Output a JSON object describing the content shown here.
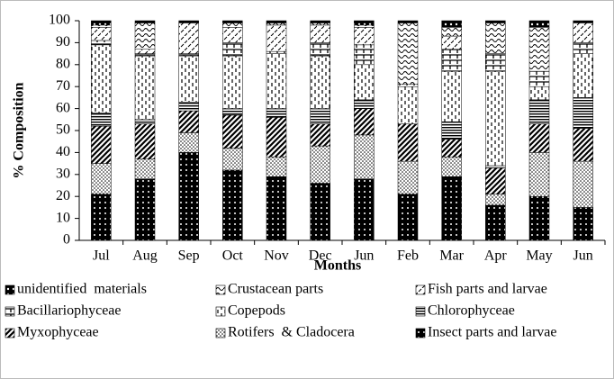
{
  "chart_data": {
    "type": "stacked_bar",
    "x_label": "Months",
    "y_label": "% Composition",
    "categories": [
      "Jul",
      "Aug",
      "Sep",
      "Oct",
      "Nov",
      "Dec",
      "Jun",
      "Feb",
      "Mar",
      "Apr",
      "May",
      "Jun"
    ],
    "ylim": [
      0,
      100
    ],
    "yticks": [
      0,
      10,
      20,
      30,
      40,
      50,
      60,
      70,
      80,
      90,
      100
    ],
    "series": [
      {
        "name": "unidentified  materials",
        "color": "#000000",
        "pattern": "blackdot",
        "values": [
          2,
          1,
          1,
          1,
          1,
          1,
          2,
          1,
          3,
          1,
          3,
          1
        ]
      },
      {
        "name": "Crustacean parts",
        "color": "#000000",
        "pattern": "wave",
        "values": [
          1,
          12,
          0,
          2,
          1,
          1,
          1,
          28,
          4,
          14,
          20,
          0
        ]
      },
      {
        "name": "Fish parts and larvae",
        "color": "#000000",
        "pattern": "slashdash",
        "values": [
          6,
          2,
          14,
          7,
          12,
          8,
          8,
          0,
          6,
          0,
          0,
          9
        ]
      },
      {
        "name": "Bacillariophyceae",
        "color": "#000000",
        "pattern": "tee",
        "values": [
          2,
          1,
          1,
          6,
          1,
          6,
          9,
          1,
          10,
          8,
          7,
          5
        ]
      },
      {
        "name": "Copepods",
        "color": "#000000",
        "pattern": "vdash",
        "values": [
          31,
          29,
          21,
          24,
          25,
          24,
          16,
          17,
          23,
          43,
          6,
          20
        ]
      },
      {
        "name": "Chlorophyceae",
        "color": "#000000",
        "pattern": "hline",
        "values": [
          6,
          2,
          4,
          3,
          4,
          7,
          4,
          0,
          8,
          1,
          11,
          14
        ]
      },
      {
        "name": "Myxophyceae",
        "color": "#000000",
        "pattern": "diag",
        "values": [
          17,
          16,
          10,
          15,
          18,
          10,
          12,
          17,
          8,
          12,
          13,
          15
        ]
      },
      {
        "name": "Rotifers  & Cladocera",
        "color": "#000000",
        "pattern": "dots",
        "values": [
          14,
          9,
          9,
          10,
          9,
          17,
          20,
          15,
          9,
          5,
          20,
          21
        ]
      },
      {
        "name": "Insect parts and larvae",
        "color": "#000000",
        "pattern": "solid",
        "values": [
          21,
          28,
          40,
          32,
          29,
          26,
          28,
          21,
          29,
          16,
          20,
          15
        ]
      }
    ]
  }
}
